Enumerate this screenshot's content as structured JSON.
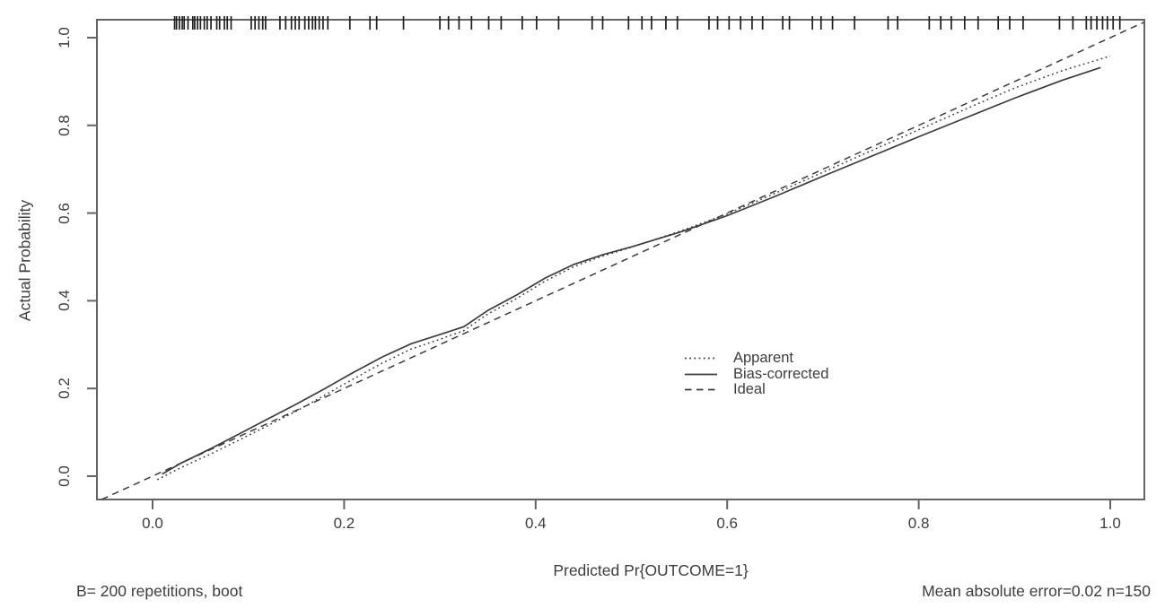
{
  "chart_data": {
    "type": "line",
    "title": "",
    "xlabel": "Predicted Pr{OUTCOME=1}",
    "ylabel": "Actual Probability",
    "xlim": [
      -0.058,
      1.036
    ],
    "ylim": [
      -0.053,
      1.041
    ],
    "grid": false,
    "x_ticks": {
      "values": [
        0.0,
        0.2,
        0.4,
        0.6,
        0.8,
        1.0
      ],
      "labels": [
        "0.0",
        "0.2",
        "0.4",
        "0.6",
        "0.8",
        "1.0"
      ]
    },
    "y_ticks": {
      "values": [
        0.0,
        0.2,
        0.4,
        0.6,
        0.8,
        1.0
      ],
      "labels": [
        "0.0",
        "0.2",
        "0.4",
        "0.6",
        "0.8",
        "1.0"
      ]
    },
    "legend": {
      "position": "inside-right-center",
      "items": [
        {
          "label": "Apparent",
          "style": "dotted"
        },
        {
          "label": "Bias-corrected",
          "style": "solid"
        },
        {
          "label": "Ideal",
          "style": "dashed"
        }
      ]
    },
    "series": [
      {
        "name": "Apparent",
        "style": "dotted",
        "points": [
          [
            0.005,
            -0.008
          ],
          [
            0.03,
            0.02
          ],
          [
            0.06,
            0.05
          ],
          [
            0.09,
            0.082
          ],
          [
            0.12,
            0.115
          ],
          [
            0.15,
            0.148
          ],
          [
            0.18,
            0.185
          ],
          [
            0.21,
            0.222
          ],
          [
            0.24,
            0.258
          ],
          [
            0.27,
            0.29
          ],
          [
            0.3,
            0.312
          ],
          [
            0.325,
            0.332
          ],
          [
            0.35,
            0.37
          ],
          [
            0.38,
            0.405
          ],
          [
            0.41,
            0.445
          ],
          [
            0.44,
            0.478
          ],
          [
            0.47,
            0.502
          ],
          [
            0.5,
            0.522
          ],
          [
            0.55,
            0.558
          ],
          [
            0.6,
            0.598
          ],
          [
            0.65,
            0.645
          ],
          [
            0.7,
            0.693
          ],
          [
            0.75,
            0.742
          ],
          [
            0.8,
            0.79
          ],
          [
            0.85,
            0.838
          ],
          [
            0.9,
            0.885
          ],
          [
            0.95,
            0.925
          ],
          [
            1.0,
            0.958
          ]
        ]
      },
      {
        "name": "Bias-corrected",
        "style": "solid",
        "points": [
          [
            0.01,
            0.005
          ],
          [
            0.03,
            0.03
          ],
          [
            0.06,
            0.062
          ],
          [
            0.09,
            0.096
          ],
          [
            0.12,
            0.13
          ],
          [
            0.15,
            0.164
          ],
          [
            0.18,
            0.2
          ],
          [
            0.21,
            0.237
          ],
          [
            0.24,
            0.272
          ],
          [
            0.27,
            0.302
          ],
          [
            0.3,
            0.323
          ],
          [
            0.325,
            0.341
          ],
          [
            0.35,
            0.378
          ],
          [
            0.38,
            0.413
          ],
          [
            0.41,
            0.452
          ],
          [
            0.44,
            0.483
          ],
          [
            0.47,
            0.505
          ],
          [
            0.5,
            0.523
          ],
          [
            0.55,
            0.556
          ],
          [
            0.6,
            0.594
          ],
          [
            0.65,
            0.638
          ],
          [
            0.7,
            0.684
          ],
          [
            0.75,
            0.729
          ],
          [
            0.8,
            0.774
          ],
          [
            0.85,
            0.818
          ],
          [
            0.9,
            0.862
          ],
          [
            0.95,
            0.903
          ],
          [
            0.99,
            0.932
          ]
        ]
      },
      {
        "name": "Ideal",
        "style": "dashed",
        "points": [
          [
            -0.053,
            -0.053
          ],
          [
            1.035,
            1.035
          ]
        ]
      }
    ],
    "rug_x": [
      0.023,
      0.025,
      0.028,
      0.031,
      0.033,
      0.037,
      0.042,
      0.044,
      0.047,
      0.05,
      0.054,
      0.057,
      0.061,
      0.067,
      0.07,
      0.075,
      0.078,
      0.082,
      0.103,
      0.107,
      0.111,
      0.115,
      0.118,
      0.133,
      0.139,
      0.145,
      0.149,
      0.153,
      0.159,
      0.163,
      0.167,
      0.17,
      0.174,
      0.178,
      0.183,
      0.206,
      0.227,
      0.234,
      0.262,
      0.3,
      0.309,
      0.32,
      0.333,
      0.351,
      0.364,
      0.386,
      0.401,
      0.424,
      0.459,
      0.47,
      0.497,
      0.511,
      0.521,
      0.536,
      0.548,
      0.581,
      0.59,
      0.602,
      0.614,
      0.626,
      0.637,
      0.658,
      0.665,
      0.689,
      0.698,
      0.71,
      0.733,
      0.768,
      0.778,
      0.811,
      0.823,
      0.834,
      0.848,
      0.862,
      0.883,
      0.895,
      0.909,
      0.947,
      0.961,
      0.975,
      0.98,
      0.986,
      0.992,
      0.997,
      1.003,
      1.01
    ],
    "annotations": {
      "bottom_left": "B= 200 repetitions, boot",
      "bottom_right": "Mean absolute error=0.02 n=150"
    },
    "colors": {
      "line": "#3c3c3c",
      "axis": "#646464",
      "rug": "#1f1f1f",
      "text": "#3d3d3d",
      "background": "#ffffff"
    }
  }
}
